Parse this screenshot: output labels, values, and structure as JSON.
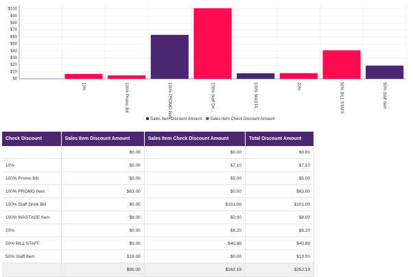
{
  "chart_data": {
    "type": "bar",
    "stacked": true,
    "categories": [
      null,
      "10%",
      "100% Promo Bill",
      "100% PROMO Item",
      "100% Staff Dri...",
      "100% WASTA...",
      "20%",
      "50% BILL STAFF",
      "50% Staff Item"
    ],
    "series": [
      {
        "name": "Sales Item Discount Amount",
        "color": "#4b2771",
        "values": [
          0,
          0,
          0,
          63,
          0,
          8,
          0,
          0,
          19
        ]
      },
      {
        "name": "Sales Item Check Discount Amount",
        "color": "#ff0a4e",
        "values": [
          0,
          7.1,
          5,
          0,
          101,
          0,
          8.2,
          40.89,
          0
        ]
      }
    ],
    "ylim": [
      0,
      105
    ],
    "yticks": [
      {
        "value": 0,
        "label": "$0"
      },
      {
        "value": 10,
        "label": "$10"
      },
      {
        "value": 20,
        "label": "$20"
      },
      {
        "value": 30,
        "label": "$30"
      },
      {
        "value": 40,
        "label": "$40"
      },
      {
        "value": 50,
        "label": "$50"
      },
      {
        "value": 60,
        "label": "$60"
      },
      {
        "value": 70,
        "label": "$70"
      },
      {
        "value": 80,
        "label": "$80"
      },
      {
        "value": 90,
        "label": "$90"
      },
      {
        "value": 100,
        "label": "$100"
      }
    ],
    "grid": true
  },
  "table": {
    "header": [
      "Check Discount",
      "Sales Item Discount Amount",
      "Sales Item Check Discount Amount",
      "Total Discount Amount"
    ],
    "rows": [
      [
        null,
        "$0.00",
        "$0.00",
        "$0.00"
      ],
      [
        "10%",
        "$0.00",
        "$7.10",
        "$7.10"
      ],
      [
        "100% Promo Bill",
        "$0.00",
        "$5.00",
        "$5.00"
      ],
      [
        "100% PROMO Item",
        "$63.00",
        "$0.00",
        "$63.00"
      ],
      [
        "100% Staff Drink Bill",
        "$0.00",
        "$101.00",
        "$101.00"
      ],
      [
        "100% WASTAGE Item",
        "$8.00",
        "$0.00",
        "$8.00"
      ],
      [
        "20%",
        "$0.00",
        "$8.20",
        "$8.20"
      ],
      [
        "50% BILL STAFF",
        "$0.00",
        "$40.89",
        "$40.89"
      ],
      [
        "50% Staff Item",
        "$19.00",
        "$0.00",
        "$19.00"
      ]
    ],
    "total": [
      null,
      "$90.00",
      "$162.19",
      "$252.19"
    ]
  }
}
